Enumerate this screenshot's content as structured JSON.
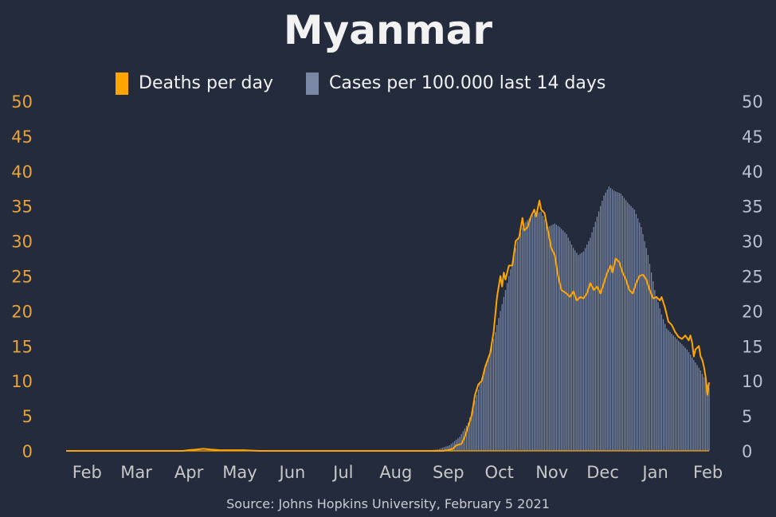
{
  "title": "Myanmar",
  "source": "Source: Johns Hopkins University, February 5 2021",
  "colors": {
    "background": "#232b3c",
    "deaths": "#ffa500",
    "cases": "#7a88a6",
    "left_axis_text": "#e7a33a",
    "right_axis_text": "#b7c0d3",
    "month_text": "#c7c7c7"
  },
  "chart_data": {
    "type": "line",
    "grid": false,
    "legend_position": "top-center",
    "x_axis": {
      "tick_labels": [
        "Feb",
        "Mar",
        "Apr",
        "May",
        "Jun",
        "Jul",
        "Aug",
        "Sep",
        "Oct",
        "Nov",
        "Dec",
        "Jan",
        "Feb"
      ],
      "range": [
        "2020-01-22",
        "2021-02-04"
      ]
    },
    "y_left": {
      "range": [
        0,
        50
      ],
      "ticks": [
        "0",
        "5",
        "10",
        "15",
        "20",
        "25",
        "30",
        "35",
        "40",
        "45",
        "50"
      ]
    },
    "y_right": {
      "range": [
        0,
        50
      ],
      "ticks": [
        "0",
        "5",
        "10",
        "15",
        "20",
        "25",
        "30",
        "35",
        "40",
        "45",
        "50"
      ]
    },
    "series": [
      {
        "name": "Deaths per day",
        "kind": "line",
        "axis": "left",
        "points": [
          [
            "2020-01-22",
            0
          ],
          [
            "2020-03-31",
            0
          ],
          [
            "2020-04-03",
            0.1
          ],
          [
            "2020-04-08",
            0.2
          ],
          [
            "2020-04-12",
            0.3
          ],
          [
            "2020-04-16",
            0.2
          ],
          [
            "2020-04-22",
            0.1
          ],
          [
            "2020-04-30",
            0.1
          ],
          [
            "2020-05-05",
            0.1
          ],
          [
            "2020-05-15",
            0
          ],
          [
            "2020-08-31",
            0
          ],
          [
            "2020-09-03",
            0.1
          ],
          [
            "2020-09-06",
            0.3
          ],
          [
            "2020-09-08",
            0.8
          ],
          [
            "2020-09-11",
            1.0
          ],
          [
            "2020-09-13",
            2.0
          ],
          [
            "2020-09-15",
            3.5
          ],
          [
            "2020-09-17",
            5.0
          ],
          [
            "2020-09-19",
            8.0
          ],
          [
            "2020-09-21",
            9.5
          ],
          [
            "2020-09-23",
            10.0
          ],
          [
            "2020-09-25",
            12.0
          ],
          [
            "2020-09-28",
            14.0
          ],
          [
            "2020-09-30",
            17.0
          ],
          [
            "2020-10-02",
            22.0
          ],
          [
            "2020-10-04",
            25.0
          ],
          [
            "2020-10-05",
            23.5
          ],
          [
            "2020-10-06",
            25.5
          ],
          [
            "2020-10-07",
            24.5
          ],
          [
            "2020-10-09",
            26.5
          ],
          [
            "2020-10-11",
            26.5
          ],
          [
            "2020-10-13",
            30.0
          ],
          [
            "2020-10-15",
            30.5
          ],
          [
            "2020-10-17",
            33.3
          ],
          [
            "2020-10-18",
            31.5
          ],
          [
            "2020-10-20",
            32.0
          ],
          [
            "2020-10-22",
            33.5
          ],
          [
            "2020-10-24",
            34.5
          ],
          [
            "2020-10-25",
            33.5
          ],
          [
            "2020-10-27",
            35.8
          ],
          [
            "2020-10-28",
            34.5
          ],
          [
            "2020-10-30",
            34.0
          ],
          [
            "2020-11-01",
            31.5
          ],
          [
            "2020-11-03",
            29.0
          ],
          [
            "2020-11-05",
            28.0
          ],
          [
            "2020-11-07",
            25.0
          ],
          [
            "2020-11-09",
            23.0
          ],
          [
            "2020-11-12",
            22.5
          ],
          [
            "2020-11-14",
            22.0
          ],
          [
            "2020-11-16",
            22.8
          ],
          [
            "2020-11-18",
            21.5
          ],
          [
            "2020-11-20",
            22.0
          ],
          [
            "2020-11-22",
            21.8
          ],
          [
            "2020-11-24",
            22.5
          ],
          [
            "2020-11-26",
            24.0
          ],
          [
            "2020-11-28",
            23.0
          ],
          [
            "2020-11-30",
            23.5
          ],
          [
            "2020-12-02",
            22.5
          ],
          [
            "2020-12-04",
            24.0
          ],
          [
            "2020-12-06",
            25.5
          ],
          [
            "2020-12-08",
            26.5
          ],
          [
            "2020-12-09",
            25.5
          ],
          [
            "2020-12-11",
            27.5
          ],
          [
            "2020-12-13",
            27.0
          ],
          [
            "2020-12-15",
            25.5
          ],
          [
            "2020-12-17",
            24.5
          ],
          [
            "2020-12-19",
            23.0
          ],
          [
            "2020-12-21",
            22.5
          ],
          [
            "2020-12-23",
            24.0
          ],
          [
            "2020-12-25",
            25.0
          ],
          [
            "2020-12-27",
            25.2
          ],
          [
            "2020-12-29",
            24.5
          ],
          [
            "2020-12-31",
            23.0
          ],
          [
            "2021-01-02",
            21.8
          ],
          [
            "2021-01-04",
            22.0
          ],
          [
            "2021-01-06",
            21.5
          ],
          [
            "2021-01-07",
            22.0
          ],
          [
            "2021-01-09",
            20.5
          ],
          [
            "2021-01-11",
            18.5
          ],
          [
            "2021-01-13",
            18.0
          ],
          [
            "2021-01-15",
            17.0
          ],
          [
            "2021-01-17",
            16.3
          ],
          [
            "2021-01-19",
            16.0
          ],
          [
            "2021-01-21",
            16.5
          ],
          [
            "2021-01-23",
            15.8
          ],
          [
            "2021-01-24",
            16.5
          ],
          [
            "2021-01-25",
            15.5
          ],
          [
            "2021-01-26",
            13.5
          ],
          [
            "2021-01-27",
            14.5
          ],
          [
            "2021-01-29",
            15.0
          ],
          [
            "2021-01-30",
            13.5
          ],
          [
            "2021-01-31",
            13.0
          ],
          [
            "2021-02-01",
            12.0
          ],
          [
            "2021-02-02",
            10.5
          ],
          [
            "2021-02-03",
            8.0
          ],
          [
            "2021-02-04",
            9.8
          ]
        ]
      },
      {
        "name": "Cases per 100.000 last 14 days",
        "kind": "bar",
        "axis": "right",
        "points": [
          [
            "2020-01-22",
            0
          ],
          [
            "2020-08-20",
            0
          ],
          [
            "2020-08-28",
            0.2
          ],
          [
            "2020-09-04",
            0.8
          ],
          [
            "2020-09-10",
            2.0
          ],
          [
            "2020-09-15",
            4.0
          ],
          [
            "2020-09-20",
            8.0
          ],
          [
            "2020-09-25",
            12.0
          ],
          [
            "2020-09-30",
            16.0
          ],
          [
            "2020-10-05",
            21.0
          ],
          [
            "2020-10-10",
            26.0
          ],
          [
            "2020-10-14",
            30.0
          ],
          [
            "2020-10-18",
            32.5
          ],
          [
            "2020-10-22",
            33.5
          ],
          [
            "2020-10-25",
            34.0
          ],
          [
            "2020-10-28",
            34.2
          ],
          [
            "2020-11-01",
            32.0
          ],
          [
            "2020-11-05",
            32.5
          ],
          [
            "2020-11-08",
            32.0
          ],
          [
            "2020-11-12",
            31.0
          ],
          [
            "2020-11-16",
            29.0
          ],
          [
            "2020-11-19",
            28.0
          ],
          [
            "2020-11-22",
            28.5
          ],
          [
            "2020-11-26",
            30.5
          ],
          [
            "2020-11-30",
            33.5
          ],
          [
            "2020-12-04",
            36.5
          ],
          [
            "2020-12-07",
            37.8
          ],
          [
            "2020-12-10",
            37.2
          ],
          [
            "2020-12-14",
            36.8
          ],
          [
            "2020-12-18",
            35.5
          ],
          [
            "2020-12-22",
            34.5
          ],
          [
            "2020-12-26",
            32.0
          ],
          [
            "2020-12-30",
            28.0
          ],
          [
            "2021-01-03",
            23.0
          ],
          [
            "2021-01-07",
            19.5
          ],
          [
            "2021-01-10",
            17.5
          ],
          [
            "2021-01-14",
            16.5
          ],
          [
            "2021-01-18",
            15.5
          ],
          [
            "2021-01-22",
            14.5
          ],
          [
            "2021-01-26",
            13.0
          ],
          [
            "2021-01-30",
            11.5
          ],
          [
            "2021-02-02",
            10.0
          ],
          [
            "2021-02-04",
            9.0
          ]
        ]
      }
    ]
  }
}
